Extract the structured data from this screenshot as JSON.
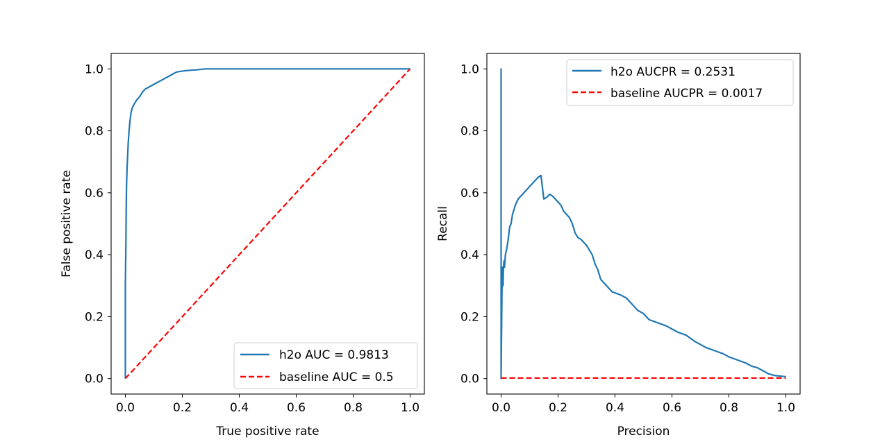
{
  "chart_data": [
    {
      "type": "line",
      "title": "",
      "xlabel": "True positive rate",
      "ylabel": "False positive rate",
      "xlim": [
        -0.05,
        1.05
      ],
      "ylim": [
        -0.05,
        1.05
      ],
      "xticks": [
        "0.0",
        "0.2",
        "0.4",
        "0.6",
        "0.8",
        "1.0"
      ],
      "yticks": [
        "0.0",
        "0.2",
        "0.4",
        "0.6",
        "0.8",
        "1.0"
      ],
      "legend_position": "lower-right",
      "series": [
        {
          "name": "h2o AUC = 0.9813",
          "color": "#1f77b4",
          "style": "solid",
          "x": [
            0.0,
            0.0,
            0.002,
            0.003,
            0.004,
            0.006,
            0.008,
            0.01,
            0.013,
            0.016,
            0.02,
            0.025,
            0.03,
            0.04,
            0.05,
            0.06,
            0.07,
            0.08,
            0.09,
            0.1,
            0.11,
            0.12,
            0.13,
            0.14,
            0.15,
            0.16,
            0.17,
            0.18,
            0.2,
            0.22,
            0.25,
            0.28,
            0.3,
            1.0
          ],
          "y": [
            0.0,
            0.3,
            0.45,
            0.55,
            0.62,
            0.68,
            0.72,
            0.76,
            0.8,
            0.83,
            0.86,
            0.875,
            0.885,
            0.9,
            0.91,
            0.925,
            0.935,
            0.94,
            0.945,
            0.95,
            0.955,
            0.96,
            0.965,
            0.97,
            0.975,
            0.98,
            0.985,
            0.99,
            0.993,
            0.995,
            0.997,
            1.0,
            1.0,
            1.0
          ]
        },
        {
          "name": "baseline AUC = 0.5",
          "color": "#ff0000",
          "style": "dashed",
          "x": [
            0.0,
            1.0
          ],
          "y": [
            0.0,
            1.0
          ]
        }
      ]
    },
    {
      "type": "line",
      "title": "",
      "xlabel": "Precision",
      "ylabel": "Recall",
      "xlim": [
        -0.05,
        1.05
      ],
      "ylim": [
        -0.05,
        1.05
      ],
      "xticks": [
        "0.0",
        "0.2",
        "0.4",
        "0.6",
        "0.8",
        "1.0"
      ],
      "yticks": [
        "0.0",
        "0.2",
        "0.4",
        "0.6",
        "0.8",
        "1.0"
      ],
      "legend_position": "upper-right",
      "series": [
        {
          "name": "h2o AUCPR = 0.2531",
          "color": "#1f77b4",
          "style": "solid",
          "x": [
            0.0,
            0.0,
            0.0,
            0.003,
            0.005,
            0.007,
            0.008,
            0.01,
            0.012,
            0.015,
            0.02,
            0.025,
            0.03,
            0.035,
            0.04,
            0.05,
            0.055,
            0.06,
            0.07,
            0.08,
            0.09,
            0.1,
            0.11,
            0.12,
            0.13,
            0.14,
            0.15,
            0.16,
            0.17,
            0.18,
            0.19,
            0.2,
            0.21,
            0.22,
            0.24,
            0.25,
            0.26,
            0.27,
            0.28,
            0.3,
            0.32,
            0.33,
            0.34,
            0.35,
            0.37,
            0.39,
            0.42,
            0.44,
            0.46,
            0.48,
            0.5,
            0.52,
            0.55,
            0.58,
            0.6,
            0.62,
            0.65,
            0.68,
            0.7,
            0.72,
            0.75,
            0.78,
            0.8,
            0.83,
            0.86,
            0.88,
            0.9,
            0.92,
            0.94,
            0.96,
            0.98,
            1.0
          ],
          "y": [
            0.0,
            1.0,
            0.0,
            0.28,
            0.36,
            0.3,
            0.35,
            0.38,
            0.36,
            0.4,
            0.42,
            0.45,
            0.49,
            0.5,
            0.53,
            0.56,
            0.57,
            0.58,
            0.59,
            0.6,
            0.61,
            0.62,
            0.63,
            0.64,
            0.65,
            0.656,
            0.58,
            0.585,
            0.595,
            0.59,
            0.58,
            0.57,
            0.56,
            0.54,
            0.52,
            0.5,
            0.47,
            0.455,
            0.45,
            0.43,
            0.4,
            0.37,
            0.35,
            0.32,
            0.3,
            0.28,
            0.27,
            0.26,
            0.24,
            0.22,
            0.21,
            0.19,
            0.18,
            0.17,
            0.16,
            0.15,
            0.14,
            0.12,
            0.11,
            0.1,
            0.09,
            0.08,
            0.07,
            0.06,
            0.05,
            0.04,
            0.035,
            0.025,
            0.015,
            0.01,
            0.008,
            0.006
          ]
        },
        {
          "name": "baseline AUCPR = 0.0017",
          "color": "#ff0000",
          "style": "dashed",
          "x": [
            0.0,
            1.0
          ],
          "y": [
            0.0017,
            0.0017
          ]
        }
      ]
    }
  ]
}
